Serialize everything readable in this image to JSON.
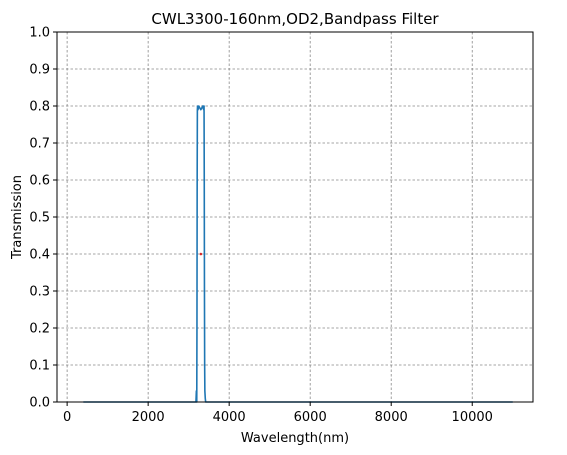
{
  "chart_data": {
    "type": "line",
    "title": "CWL3300-160nm,OD2,Bandpass Filter",
    "xlabel": "Wavelength(nm)",
    "ylabel": "Transmission",
    "xlim": [
      -250,
      11500
    ],
    "ylim": [
      0,
      1.0
    ],
    "xticks": [
      0,
      2000,
      4000,
      6000,
      8000,
      10000
    ],
    "yticks": [
      0.0,
      0.1,
      0.2,
      0.3,
      0.4,
      0.5,
      0.6,
      0.7,
      0.8,
      0.9,
      1.0
    ],
    "xtick_labels": [
      "0",
      "2000",
      "4000",
      "6000",
      "8000",
      "10000"
    ],
    "ytick_labels": [
      "0.0",
      "0.1",
      "0.2",
      "0.3",
      "0.4",
      "0.5",
      "0.6",
      "0.7",
      "0.8",
      "0.9",
      "1.0"
    ],
    "grid": true,
    "series": [
      {
        "color": "#1f77b4",
        "x": [
          400,
          3180,
          3190,
          3200,
          3205,
          3210,
          3215,
          3220,
          3230,
          3250,
          3300,
          3350,
          3370,
          3380,
          3385,
          3390,
          3395,
          3400,
          3410,
          3420,
          11000
        ],
        "y": [
          0.0,
          0.0,
          0.03,
          0.0,
          0.2,
          0.6,
          0.79,
          0.8,
          0.79,
          0.8,
          0.79,
          0.8,
          0.79,
          0.8,
          0.6,
          0.3,
          0.1,
          0.03,
          0.01,
          0.0,
          0.0
        ]
      }
    ],
    "markers": [
      {
        "color": "#d62728",
        "x": 3300,
        "y": 0.4
      }
    ]
  }
}
